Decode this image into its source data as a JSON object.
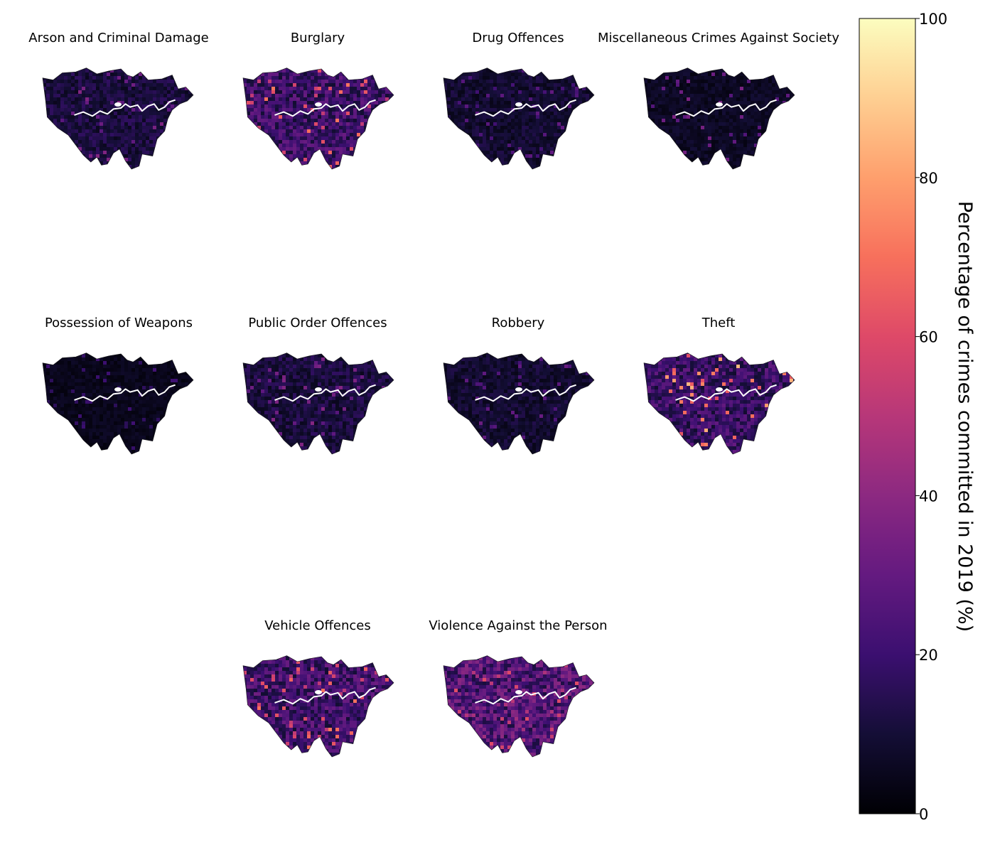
{
  "figure": {
    "colormap": "magma",
    "colorbar": {
      "label": "Percentage of crimes committed in 2019 (%)",
      "min": 0,
      "max": 100,
      "ticks": [
        {
          "value": 0,
          "label": "0"
        },
        {
          "value": 20,
          "label": "20"
        },
        {
          "value": 40,
          "label": "40"
        },
        {
          "value": 60,
          "label": "60"
        },
        {
          "value": 80,
          "label": "80"
        },
        {
          "value": 100,
          "label": "100"
        }
      ]
    },
    "panels": [
      {
        "title": "Arson and Criminal Damage",
        "typical_pct": 14,
        "hot_pct": 38
      },
      {
        "title": "Burglary",
        "typical_pct": 25,
        "hot_pct": 72
      },
      {
        "title": "Drug Offences",
        "typical_pct": 11,
        "hot_pct": 30
      },
      {
        "title": "Miscellaneous Crimes Against Society",
        "typical_pct": 8,
        "hot_pct": 36
      },
      {
        "title": "Possession of Weapons",
        "typical_pct": 6,
        "hot_pct": 22
      },
      {
        "title": "Public Order Offences",
        "typical_pct": 14,
        "hot_pct": 38
      },
      {
        "title": "Robbery",
        "typical_pct": 11,
        "hot_pct": 32
      },
      {
        "title": "Theft",
        "typical_pct": 24,
        "hot_pct": 85
      },
      {
        "title": "Vehicle Offences",
        "typical_pct": 26,
        "hot_pct": 72
      },
      {
        "title": "Violence Against the Person",
        "typical_pct": 32,
        "hot_pct": 62
      }
    ]
  }
}
